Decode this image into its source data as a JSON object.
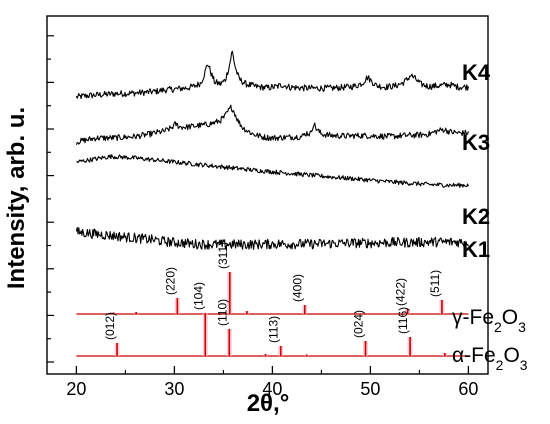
{
  "chart_data": {
    "type": "line",
    "xlabel": "2θ,°",
    "ylabel": "Intensity, arb. u.",
    "xlim": [
      17,
      62
    ],
    "xticks": [
      20,
      30,
      40,
      50,
      60
    ],
    "xtick_labels": [
      "20",
      "30",
      "40",
      "50",
      "60"
    ],
    "yticks": "unlabeled",
    "grid": false,
    "series": [
      {
        "name": "K4",
        "noise": 3.2,
        "points": [
          [
            20,
            0
          ],
          [
            21.0,
            1.2
          ],
          [
            22.0,
            2.0
          ],
          [
            23.0,
            2.6
          ],
          [
            24.0,
            3.4
          ],
          [
            25.0,
            3.5
          ],
          [
            26.0,
            4.0
          ],
          [
            27.0,
            4.6
          ],
          [
            28.0,
            5.5
          ],
          [
            29.0,
            7.0
          ],
          [
            30.0,
            7.8
          ],
          [
            30.8,
            8.6
          ],
          [
            31.5,
            9.5
          ],
          [
            32.1,
            11
          ],
          [
            32.7,
            14
          ],
          [
            33.1,
            24
          ],
          [
            33.4,
            34
          ],
          [
            33.7,
            25
          ],
          [
            34.1,
            15
          ],
          [
            34.7,
            13
          ],
          [
            35.2,
            17
          ],
          [
            35.6,
            31
          ],
          [
            35.9,
            46
          ],
          [
            36.2,
            30
          ],
          [
            36.6,
            18
          ],
          [
            37.3,
            13
          ],
          [
            38.3,
            10.5
          ],
          [
            39.5,
            9.2
          ],
          [
            40.5,
            10.5
          ],
          [
            41.0,
            12.2
          ],
          [
            41.8,
            9.8
          ],
          [
            43.0,
            9.0
          ],
          [
            44.5,
            8.8
          ],
          [
            46.0,
            8.8
          ],
          [
            47.5,
            9.8
          ],
          [
            48.5,
            11
          ],
          [
            49.2,
            14
          ],
          [
            49.7,
            20
          ],
          [
            50.1,
            16
          ],
          [
            50.6,
            11.5
          ],
          [
            51.5,
            10.0
          ],
          [
            52.5,
            11.0
          ],
          [
            53.3,
            14
          ],
          [
            53.8,
            18
          ],
          [
            54.1,
            22
          ],
          [
            54.5,
            19
          ],
          [
            55.1,
            13
          ],
          [
            56.0,
            10.5
          ],
          [
            57.3,
            11.5
          ],
          [
            58.0,
            12.5
          ],
          [
            59.0,
            10
          ],
          [
            60,
            10
          ]
        ]
      },
      {
        "name": "K3",
        "noise": 3.0,
        "points": [
          [
            20,
            0
          ],
          [
            21.0,
            2.0
          ],
          [
            22.0,
            4.0
          ],
          [
            23.0,
            4.0
          ],
          [
            24.0,
            4.2
          ],
          [
            25.0,
            4.8
          ],
          [
            26.0,
            5.5
          ],
          [
            27.0,
            7.0
          ],
          [
            28.0,
            9.0
          ],
          [
            29.0,
            11
          ],
          [
            29.7,
            14
          ],
          [
            30.1,
            18
          ],
          [
            30.6,
            15
          ],
          [
            31.3,
            15
          ],
          [
            32.1,
            16
          ],
          [
            33.0,
            17
          ],
          [
            33.8,
            18.5
          ],
          [
            34.6,
            21
          ],
          [
            35.1,
            25
          ],
          [
            35.5,
            31
          ],
          [
            35.8,
            35
          ],
          [
            36.1,
            30
          ],
          [
            36.5,
            21
          ],
          [
            37.0,
            14
          ],
          [
            38.0,
            8
          ],
          [
            39.0,
            5
          ],
          [
            40.0,
            4
          ],
          [
            41.0,
            4.5
          ],
          [
            42.0,
            5
          ],
          [
            43.0,
            5.5
          ],
          [
            43.5,
            9
          ],
          [
            43.9,
            8
          ],
          [
            44.2,
            19
          ],
          [
            44.5,
            13
          ],
          [
            45.0,
            8
          ],
          [
            46.0,
            6.5
          ],
          [
            47.5,
            6
          ],
          [
            49.0,
            6.5
          ],
          [
            50.5,
            6
          ],
          [
            52.0,
            5.5
          ],
          [
            53.5,
            6.5
          ],
          [
            55.0,
            7
          ],
          [
            56.0,
            8
          ],
          [
            57.0,
            11.5
          ],
          [
            57.5,
            12.5
          ],
          [
            58.2,
            10
          ],
          [
            59.0,
            9
          ],
          [
            60,
            9
          ]
        ]
      },
      {
        "name": "K2",
        "noise": 2.2,
        "points": [
          [
            20,
            0
          ],
          [
            21.0,
            1.5
          ],
          [
            22.5,
            4.0
          ],
          [
            23.5,
            5.5
          ],
          [
            24.5,
            5.0
          ],
          [
            26.0,
            4.0
          ],
          [
            28.0,
            2.0
          ],
          [
            30.0,
            0.0
          ],
          [
            32.0,
            -2.0
          ],
          [
            34.0,
            -4.0
          ],
          [
            36.0,
            -6.0
          ],
          [
            38.0,
            -8.0
          ],
          [
            40.0,
            -9.8
          ],
          [
            42.0,
            -11.5
          ],
          [
            44.0,
            -13.2
          ],
          [
            46.0,
            -15.0
          ],
          [
            48.0,
            -16.5
          ],
          [
            50.0,
            -18.2
          ],
          [
            52.0,
            -19.8
          ],
          [
            54.0,
            -21.2
          ],
          [
            56.0,
            -22.5
          ],
          [
            58.0,
            -23.2
          ],
          [
            60,
            -23.2
          ]
        ]
      },
      {
        "name": "K1",
        "noise": 5.0,
        "points": [
          [
            20,
            0
          ],
          [
            21.0,
            -1.0
          ],
          [
            22.0,
            -2.0
          ],
          [
            23.0,
            -3.0
          ],
          [
            24.0,
            -4.0
          ],
          [
            25.0,
            -5.0
          ],
          [
            26.0,
            -6.0
          ],
          [
            27.0,
            -7.0
          ],
          [
            28.0,
            -8.0
          ],
          [
            29.0,
            -9.5
          ],
          [
            30.0,
            -10.5
          ],
          [
            31.0,
            -11.0
          ],
          [
            32.0,
            -12.0
          ],
          [
            34.0,
            -12.5
          ],
          [
            36.0,
            -12.5
          ],
          [
            38.0,
            -12.5
          ],
          [
            40.0,
            -12.0
          ],
          [
            42.0,
            -12.0
          ],
          [
            44.0,
            -12.0
          ],
          [
            46.0,
            -11.5
          ],
          [
            48.0,
            -11.0
          ],
          [
            50.0,
            -11.0
          ],
          [
            52.0,
            -10.5
          ],
          [
            54.0,
            -10.5
          ],
          [
            56.0,
            -10.0
          ],
          [
            58.0,
            -10.0
          ],
          [
            60,
            -10
          ]
        ]
      }
    ],
    "references": [
      {
        "name": "γ-Fe2O3",
        "color": "#cc0000",
        "fill": "#f2b8c8",
        "peaks": [
          {
            "x": 23.8,
            "h": 1.5,
            "hkl": ""
          },
          {
            "x": 26.1,
            "h": 2.0,
            "hkl": ""
          },
          {
            "x": 30.3,
            "h": 16,
            "hkl": "(220)"
          },
          {
            "x": 35.65,
            "h": 42,
            "hkl": "(311)"
          },
          {
            "x": 37.4,
            "h": 3,
            "hkl": ""
          },
          {
            "x": 43.3,
            "h": 9,
            "hkl": "(400)"
          },
          {
            "x": 53.8,
            "h": 5,
            "hkl": "(422)"
          },
          {
            "x": 57.3,
            "h": 14,
            "hkl": "(511)"
          }
        ]
      },
      {
        "name": "α-Fe2O3",
        "color": "#cc0000",
        "fill": "#f2b8c8",
        "peaks": [
          {
            "x": 24.15,
            "h": 13,
            "hkl": "(012)"
          },
          {
            "x": 33.15,
            "h": 43,
            "hkl": "(104)"
          },
          {
            "x": 35.6,
            "h": 27,
            "hkl": "(110)"
          },
          {
            "x": 39.3,
            "h": 2,
            "hkl": ""
          },
          {
            "x": 40.85,
            "h": 10,
            "hkl": "(113)"
          },
          {
            "x": 43.5,
            "h": 1.5,
            "hkl": ""
          },
          {
            "x": 49.5,
            "h": 15,
            "hkl": "(024)"
          },
          {
            "x": 54.05,
            "h": 19,
            "hkl": "(116)"
          },
          {
            "x": 57.6,
            "h": 3,
            "hkl": ""
          }
        ]
      }
    ]
  }
}
